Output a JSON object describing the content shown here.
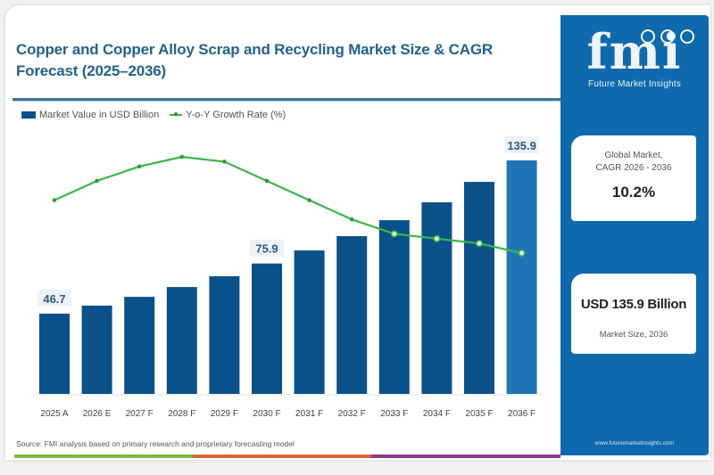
{
  "title": "Copper and Copper Alloy Scrap and Recycling Market Size & CAGR Forecast (2025–2036)",
  "legend": {
    "bar_label": "Market Value in USD Billion",
    "line_label": "Y-o-Y Growth Rate (%)"
  },
  "source": "Source: FMI analysis based on primary research and proprietary forecasting model",
  "colors": {
    "bar": "#0b5189",
    "bar_highlight": "#1f74b5",
    "line": "#3cb54a",
    "title": "#24628c",
    "sidebar": "#0f6aad",
    "stripe_green": "#7cba4a",
    "stripe_orange": "#d9683d",
    "stripe_purple": "#8b3b8c"
  },
  "sidebar": {
    "logo_text": "fmi",
    "logo_subtitle": "Future Market Insights",
    "cagr_card": {
      "label_line1": "Global Market,",
      "label_line2": "CAGR 2026 - 2036",
      "value": "10.2%"
    },
    "size_card": {
      "value": "USD 135.9 Billion",
      "label": "Market Size, 2036"
    },
    "url": "www.futuremarketinsights.com"
  },
  "chart_data": {
    "type": "bar",
    "title": "Copper and Copper Alloy Scrap and Recycling Market Size & CAGR Forecast (2025–2036)",
    "xlabel": "",
    "ylabel": "",
    "categories": [
      "2025 A",
      "2026 E",
      "2027 F",
      "2028 F",
      "2029 F",
      "2030 F",
      "2031 F",
      "2032 F",
      "2033 F",
      "2034 F",
      "2035 F",
      "2036 F"
    ],
    "series": [
      {
        "name": "Market Value in USD Billion",
        "type": "bar",
        "values": [
          46.7,
          51.4,
          56.5,
          62.2,
          68.5,
          75.9,
          83.5,
          91.8,
          101.1,
          111.5,
          123.4,
          135.9
        ],
        "data_labels": {
          "0": "46.7",
          "5": "75.9",
          "11": "135.9"
        }
      },
      {
        "name": "Y-o-Y Growth Rate (%)",
        "type": "line",
        "values": [
          10.1,
          10.5,
          10.8,
          11.0,
          10.9,
          10.5,
          10.1,
          9.7,
          9.4,
          9.3,
          9.2,
          9.0
        ]
      }
    ],
    "ylim": [
      0,
      140
    ],
    "y2lim": [
      7.0,
      12.0
    ],
    "grid": false,
    "legend_position": "top-left"
  }
}
